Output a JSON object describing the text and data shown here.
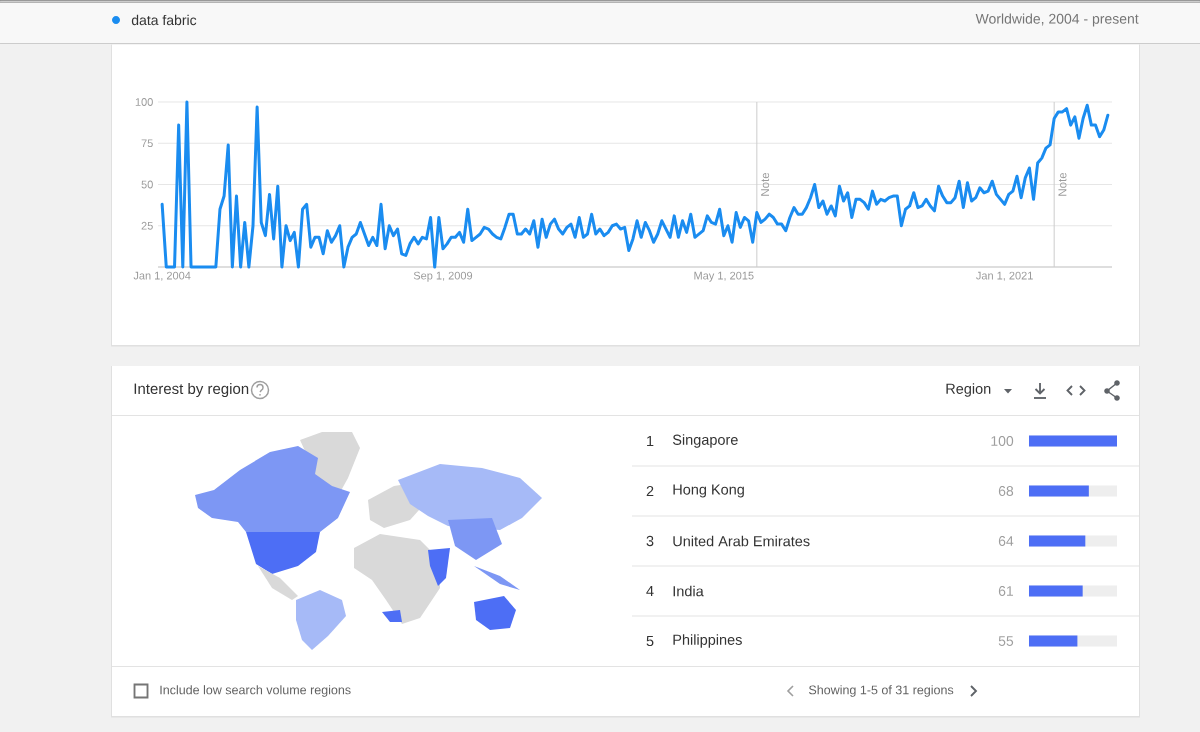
{
  "chart_data": [
    {
      "type": "line",
      "series": [
        {
          "name": "data fabric",
          "color": "#1a8cf0",
          "values": [
            38,
            0,
            0,
            86,
            0,
            100,
            0,
            0,
            0,
            35,
            43,
            74,
            0,
            43,
            0,
            27,
            0,
            25,
            97,
            27,
            19,
            44,
            17,
            49,
            0,
            25,
            16,
            21,
            0,
            35,
            38,
            12,
            18,
            18,
            8,
            22,
            15,
            19,
            25,
            0,
            12,
            18,
            20,
            27,
            20,
            13,
            18,
            13,
            38,
            11,
            25,
            19,
            23,
            8,
            7,
            14,
            18,
            14,
            18,
            17,
            30,
            0,
            30,
            11,
            14,
            18,
            18,
            21,
            15,
            35,
            16,
            18,
            20,
            24,
            23,
            20,
            18,
            17,
            24,
            32,
            32,
            20,
            20,
            23,
            20,
            28,
            12,
            29,
            18,
            26,
            29,
            23,
            20,
            24,
            26,
            18,
            30,
            18,
            20,
            32,
            20,
            23,
            19,
            21,
            25,
            26,
            23,
            24,
            10,
            17,
            28,
            18,
            27,
            22,
            15,
            20,
            28,
            23,
            18,
            31,
            18,
            28,
            21,
            32,
            18,
            20,
            22,
            31,
            27,
            26,
            35,
            19,
            25,
            15,
            33,
            24,
            30,
            28,
            15,
            33,
            27,
            29,
            32,
            30,
            26,
            26,
            22,
            30,
            36,
            32,
            32,
            36,
            42,
            50,
            36,
            40,
            32,
            37,
            31,
            49,
            40,
            45,
            30,
            41,
            41,
            39,
            35,
            46,
            38,
            41,
            40,
            42,
            43,
            43,
            25,
            35,
            37,
            45,
            36,
            37,
            41,
            37,
            34,
            49,
            43,
            39,
            39,
            42,
            52,
            36,
            51,
            40,
            42,
            48,
            45,
            46,
            52,
            44,
            41,
            38,
            44,
            46,
            55,
            42,
            54,
            60,
            41,
            63,
            66,
            72,
            74,
            90,
            94,
            94,
            96,
            86,
            91,
            78,
            90,
            98,
            86,
            86,
            79,
            83,
            92
          ]
        }
      ],
      "x": [
        "2004-01",
        "2004-02",
        "2004-04",
        "2004-05",
        "2004-06",
        "2004-07",
        "2004-08",
        "2004-09",
        "2005-02",
        "2005-03",
        "2005-04",
        "2005-05",
        "2005-06",
        "2005-07",
        "2005-08",
        "2005-09",
        "2005-10",
        "2005-11",
        "2005-12",
        "2006-01",
        "2006-02",
        "2006-03",
        "2006-04",
        "2006-05",
        "2006-06",
        "2006-07",
        "2006-08",
        "2006-09",
        "2006-10",
        "2006-11",
        "2006-12",
        "2007-01",
        "2007-02",
        "2007-03",
        "2007-04",
        "2007-05",
        "2007-06",
        "2007-07",
        "2007-08",
        "2007-09",
        "2007-10",
        "2007-11",
        "2007-12",
        "2008-01",
        "2008-02",
        "2008-03",
        "2008-04",
        "2008-05",
        "2008-06",
        "2008-07",
        "2008-08",
        "2008-09",
        "2008-10",
        "2008-11",
        "2008-12",
        "2009-01",
        "2009-02",
        "2009-03",
        "2009-04",
        "2009-05",
        "2009-06",
        "2009-07",
        "2009-08",
        "2009-09",
        "2009-10",
        "2009-11",
        "2009-12",
        "2010-01",
        "2010-02",
        "2010-03",
        "2010-04",
        "2010-05",
        "2010-06",
        "2010-07",
        "2010-08",
        "2010-09",
        "2010-10",
        "2010-11",
        "2010-12",
        "2011-01",
        "2011-02",
        "2011-03",
        "2011-04",
        "2011-05",
        "2011-06",
        "2011-07",
        "2011-08",
        "2011-09",
        "2011-10",
        "2011-11",
        "2011-12",
        "2012-01",
        "2012-02",
        "2012-03",
        "2012-04",
        "2012-05",
        "2012-06",
        "2012-07",
        "2012-08",
        "2012-09",
        "2012-10",
        "2012-11",
        "2012-12",
        "2013-01",
        "2013-02",
        "2013-03",
        "2013-04",
        "2013-05",
        "2013-06",
        "2013-07",
        "2013-08",
        "2013-09",
        "2013-10",
        "2013-11",
        "2013-12",
        "2014-01",
        "2014-02",
        "2014-03",
        "2014-04",
        "2014-05",
        "2014-06",
        "2014-07",
        "2014-08",
        "2014-09",
        "2014-10",
        "2014-11",
        "2014-12",
        "2015-01",
        "2015-02",
        "2015-03",
        "2015-04",
        "2015-05",
        "2015-06",
        "2015-07",
        "2015-08",
        "2015-09",
        "2015-10",
        "2015-11",
        "2015-12",
        "2016-01",
        "2016-02",
        "2016-03",
        "2016-04",
        "2016-05",
        "2016-06",
        "2016-07",
        "2016-08",
        "2016-09",
        "2016-10",
        "2016-11",
        "2016-12",
        "2017-01",
        "2017-02",
        "2017-03",
        "2017-04",
        "2017-05",
        "2017-06",
        "2017-07",
        "2017-08",
        "2017-09",
        "2017-10",
        "2017-11",
        "2017-12",
        "2018-01",
        "2018-02",
        "2018-03",
        "2018-04",
        "2018-05",
        "2018-06",
        "2018-07",
        "2018-08",
        "2018-09",
        "2018-10",
        "2018-11",
        "2018-12",
        "2019-01",
        "2019-02",
        "2019-03",
        "2019-04",
        "2019-05",
        "2019-06",
        "2019-07",
        "2019-08",
        "2019-09",
        "2019-10",
        "2019-11",
        "2019-12",
        "2020-01",
        "2020-02",
        "2020-03",
        "2020-04",
        "2020-05",
        "2020-06",
        "2020-07",
        "2020-08",
        "2020-09",
        "2020-10",
        "2020-11",
        "2020-12",
        "2021-01",
        "2021-02",
        "2021-03",
        "2021-04",
        "2021-05",
        "2021-06",
        "2021-07",
        "2021-08",
        "2021-09",
        "2021-10",
        "2021-11",
        "2021-12",
        "2022-01",
        "2022-02",
        "2022-03",
        "2022-04",
        "2022-05",
        "2022-06",
        "2022-07",
        "2022-08",
        "2022-09",
        "2022-10",
        "2022-11",
        "2022-12",
        "2023-01",
        "2023-02"
      ],
      "xlim": [
        "2003-12-01",
        "2023-03-01"
      ],
      "xticks": [
        {
          "value": "2004-01-01",
          "label": "Jan 1, 2004"
        },
        {
          "value": "2009-09-01",
          "label": "Sep 1, 2009"
        },
        {
          "value": "2015-05-01",
          "label": "May 1, 2015"
        },
        {
          "value": "2021-01-01",
          "label": "Jan 1, 2021"
        }
      ],
      "ylim": [
        0,
        100
      ],
      "yticks": [
        25,
        50,
        75,
        100
      ],
      "grid": "y",
      "legend": "top left",
      "ref_lines": [
        {
          "axis": "x",
          "value": "2016-01-01",
          "label": "Note",
          "color": "#cccccc"
        },
        {
          "axis": "x",
          "value": "2022-01-01",
          "label": "Note",
          "color": "#cccccc"
        }
      ],
      "annotations": [
        "Worldwide, 2004 - present"
      ]
    },
    {
      "type": "bar",
      "orientation": "horizontal",
      "categories": [
        "Singapore",
        "Hong Kong",
        "United Arab Emirates",
        "India",
        "Philippines"
      ],
      "values": [
        100,
        68,
        64,
        61,
        55
      ],
      "color": "#4d6ef5",
      "xlim": [
        0,
        100
      ],
      "data_labels": true,
      "tick_labels": "y",
      "annotations": [
        "Interest by region",
        "Region",
        "1",
        "2",
        "3",
        "4",
        "5",
        "Include low search volume regions",
        "Showing 1-5 of 31 regions"
      ]
    }
  ]
}
